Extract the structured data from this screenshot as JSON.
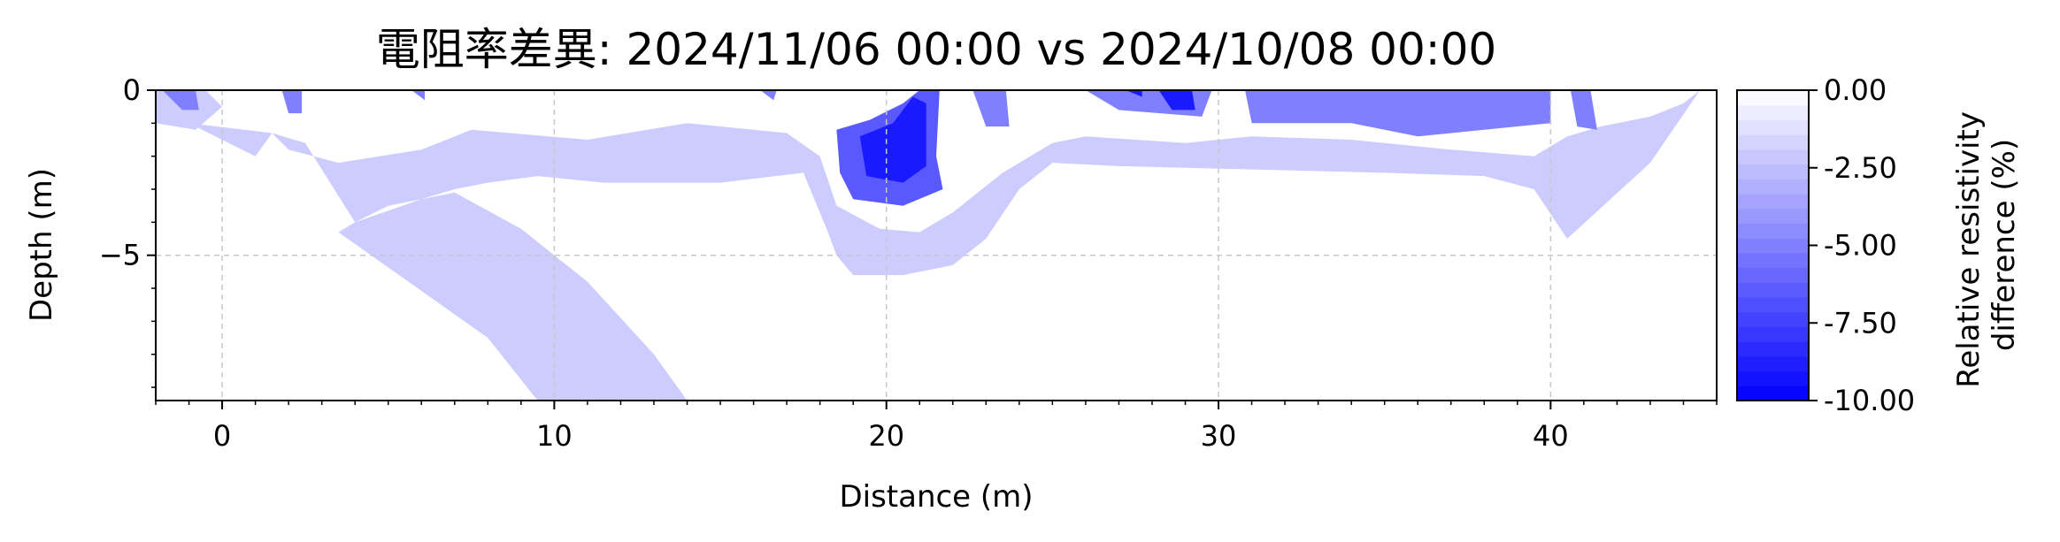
{
  "chart_data": {
    "type": "contour",
    "title": "電阻率差異: 2024/11/06 00:00 vs 2024/10/08 00:00",
    "xlabel": "Distance (m)",
    "ylabel": "Depth (m)",
    "xlim": [
      -2,
      45
    ],
    "ylim": [
      -9.4,
      0
    ],
    "grid": true,
    "x_ticks": [
      0,
      10,
      20,
      30,
      40
    ],
    "x_tick_labels": [
      "0",
      "10",
      "20",
      "30",
      "40"
    ],
    "y_ticks": [
      0,
      -5
    ],
    "y_tick_labels": [
      "0",
      "−5"
    ],
    "colorbar": {
      "label_lines": [
        "Relative resistivity",
        "difference (%)"
      ],
      "range": [
        -10,
        0
      ],
      "ticks": [
        0,
        -2.5,
        -5,
        -7.5,
        -10
      ],
      "tick_labels": [
        "0.00",
        "-2.50",
        "-5.00",
        "-7.50",
        "-10.00"
      ],
      "levels": 21,
      "color_low": "#0000ff",
      "color_high": "#ffffff"
    },
    "regions": [
      {
        "name": "region-light-main",
        "value": -2.0,
        "points": [
          [
            -2,
            0
          ],
          [
            -1,
            0
          ],
          [
            -1,
            -1
          ],
          [
            1,
            -2
          ],
          [
            1.5,
            -1.3
          ],
          [
            2,
            -1.8
          ],
          [
            3.5,
            -2.2
          ],
          [
            6,
            -1.8
          ],
          [
            7.5,
            -1.2
          ],
          [
            11,
            -1.5
          ],
          [
            14,
            -1
          ],
          [
            17,
            -1.3
          ],
          [
            18,
            -2
          ],
          [
            18.5,
            -3.5
          ],
          [
            19.8,
            -4.2
          ],
          [
            21,
            -4.3
          ],
          [
            22,
            -3.7
          ],
          [
            23.5,
            -2.5
          ],
          [
            25,
            -1.6
          ],
          [
            26,
            -1.4
          ],
          [
            29,
            -1.6
          ],
          [
            31,
            -1.4
          ],
          [
            34,
            -1.5
          ],
          [
            37,
            -1.8
          ],
          [
            39.5,
            -2
          ],
          [
            40.5,
            -1.4
          ],
          [
            41.5,
            -1.1
          ],
          [
            43,
            -0.8
          ],
          [
            44,
            -0.4
          ],
          [
            44.5,
            0
          ],
          [
            43,
            -2.2
          ],
          [
            40.5,
            -4.5
          ],
          [
            39.5,
            -3
          ],
          [
            38,
            -2.6
          ],
          [
            35,
            -2.5
          ],
          [
            31,
            -2.4
          ],
          [
            27,
            -2.3
          ],
          [
            25,
            -2.2
          ],
          [
            24,
            -3
          ],
          [
            23,
            -4.5
          ],
          [
            22,
            -5.3
          ],
          [
            20.5,
            -5.6
          ],
          [
            19,
            -5.6
          ],
          [
            18.5,
            -5
          ],
          [
            18.2,
            -4.2
          ],
          [
            17.5,
            -2.5
          ],
          [
            15,
            -2.8
          ],
          [
            11.5,
            -2.8
          ],
          [
            9.5,
            -2.6
          ],
          [
            8,
            -2.8
          ],
          [
            7,
            -3
          ],
          [
            6,
            -3.3
          ],
          [
            5,
            -3.5
          ],
          [
            4,
            -4
          ],
          [
            3.5,
            -4.3
          ],
          [
            8,
            -7.5
          ],
          [
            9.5,
            -9.4
          ],
          [
            14,
            -9.4
          ],
          [
            13,
            -8
          ],
          [
            11,
            -5.8
          ],
          [
            10,
            -5
          ],
          [
            9,
            -4.2
          ],
          [
            7,
            -3.1
          ],
          [
            6,
            -3.3
          ],
          [
            4,
            -4
          ],
          [
            2.5,
            -1.6
          ],
          [
            1.5,
            -1.3
          ],
          [
            -1,
            -1
          ],
          [
            -2,
            -0.4
          ]
        ]
      },
      {
        "name": "region-light-left",
        "value": -2.0,
        "points": [
          [
            -2,
            0
          ],
          [
            -0.5,
            0
          ],
          [
            0,
            -0.5
          ],
          [
            -0.8,
            -1.2
          ],
          [
            -2,
            -1
          ]
        ]
      },
      {
        "name": "region-mid-left",
        "value": -5.0,
        "points": [
          [
            -1.8,
            0
          ],
          [
            -0.8,
            0
          ],
          [
            -0.7,
            -0.6
          ],
          [
            -1.2,
            -0.6
          ]
        ]
      },
      {
        "name": "region-mid-a",
        "value": -5.0,
        "points": [
          [
            1.8,
            0
          ],
          [
            2.4,
            0
          ],
          [
            2.4,
            -0.7
          ],
          [
            2,
            -0.7
          ]
        ]
      },
      {
        "name": "region-mid-b",
        "value": -5.0,
        "points": [
          [
            5.7,
            0
          ],
          [
            6.1,
            0
          ],
          [
            6.1,
            -0.3
          ]
        ]
      },
      {
        "name": "region-mid-c",
        "value": -5.0,
        "points": [
          [
            16.2,
            0
          ],
          [
            16.7,
            0
          ],
          [
            16.6,
            -0.3
          ]
        ]
      },
      {
        "name": "region-mid-d",
        "value": -5.0,
        "points": [
          [
            22.6,
            0
          ],
          [
            23.6,
            0
          ],
          [
            23.7,
            -1.1
          ],
          [
            23,
            -1.1
          ]
        ]
      },
      {
        "name": "region-mid-e",
        "value": -5.0,
        "points": [
          [
            26,
            0
          ],
          [
            29.8,
            0
          ],
          [
            29.5,
            -0.8
          ],
          [
            27,
            -0.6
          ]
        ]
      },
      {
        "name": "region-mid-main",
        "value": -5.0,
        "points": [
          [
            30.8,
            0
          ],
          [
            40,
            0
          ],
          [
            40,
            -1
          ],
          [
            38,
            -1.2
          ],
          [
            36,
            -1.4
          ],
          [
            34,
            -1
          ],
          [
            31,
            -1
          ]
        ]
      },
      {
        "name": "region-mid-f",
        "value": -5.0,
        "points": [
          [
            40.6,
            0
          ],
          [
            41.2,
            0
          ],
          [
            41.4,
            -1.2
          ],
          [
            40.8,
            -1.1
          ]
        ]
      },
      {
        "name": "region-anomaly-outer",
        "value": -6.5,
        "points": [
          [
            18.5,
            -1.2
          ],
          [
            19.5,
            -0.9
          ],
          [
            20.5,
            -0.4
          ],
          [
            21,
            0
          ],
          [
            21.6,
            0
          ],
          [
            21.5,
            -2
          ],
          [
            21.7,
            -3
          ],
          [
            20.5,
            -3.5
          ],
          [
            19,
            -3.3
          ],
          [
            18.6,
            -2.5
          ]
        ]
      },
      {
        "name": "region-anomaly-inner",
        "value": -9.0,
        "points": [
          [
            19.2,
            -1.4
          ],
          [
            20.2,
            -1
          ],
          [
            20.8,
            -0.2
          ],
          [
            21.2,
            -0.4
          ],
          [
            21.2,
            -2.3
          ],
          [
            20.5,
            -2.8
          ],
          [
            19.4,
            -2.6
          ]
        ]
      },
      {
        "name": "region-deep-a",
        "value": -9.0,
        "points": [
          [
            28.2,
            0
          ],
          [
            29.2,
            0
          ],
          [
            29.3,
            -0.6
          ],
          [
            28.6,
            -0.6
          ]
        ]
      },
      {
        "name": "region-deep-b",
        "value": -9.0,
        "points": [
          [
            27.2,
            0
          ],
          [
            27.7,
            0
          ],
          [
            27.7,
            -0.2
          ]
        ]
      }
    ]
  }
}
